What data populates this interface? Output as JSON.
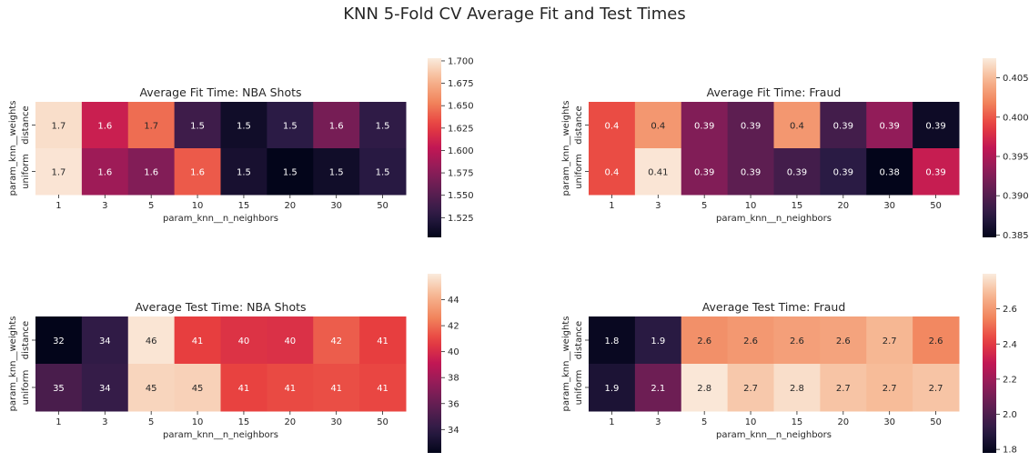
{
  "suptitle": "KNN 5-Fold CV Average Fit and Test Times",
  "chart_data": [
    {
      "type": "heatmap",
      "title": "Average Fit Time: NBA Shots",
      "xlabel": "param_knn__n_neighbors",
      "ylabel": "param_knn__weights",
      "categories": [
        "1",
        "3",
        "5",
        "10",
        "15",
        "20",
        "30",
        "50"
      ],
      "rows": [
        "distance",
        "uniform"
      ],
      "values": [
        [
          1.7,
          1.6,
          1.7,
          1.5,
          1.5,
          1.5,
          1.6,
          1.5
        ],
        [
          1.7,
          1.6,
          1.6,
          1.6,
          1.5,
          1.5,
          1.5,
          1.5
        ]
      ],
      "color_values": [
        [
          1.697,
          1.608,
          1.645,
          1.538,
          1.512,
          1.528,
          1.566,
          1.53
        ],
        [
          1.7,
          1.586,
          1.572,
          1.638,
          1.516,
          1.503,
          1.512,
          1.526
        ]
      ],
      "colorbar_range": [
        1.503,
        1.703
      ],
      "colorbar_ticks": [
        1.7,
        1.675,
        1.65,
        1.625,
        1.6,
        1.575,
        1.55,
        1.525
      ],
      "colorbar_labels": [
        "1.700",
        "1.675",
        "1.650",
        "1.625",
        "1.600",
        "1.575",
        "1.550",
        "1.525"
      ],
      "colormap": "rocket"
    },
    {
      "type": "heatmap",
      "title": "Average Fit Time: Fraud",
      "xlabel": "param_knn__n_neighbors",
      "ylabel": "param_knn__weights",
      "categories": [
        "1",
        "3",
        "5",
        "10",
        "15",
        "20",
        "30",
        "50"
      ],
      "rows": [
        "distance",
        "uniform"
      ],
      "values": [
        [
          0.4,
          0.4,
          0.39,
          0.39,
          0.4,
          0.39,
          0.39,
          0.39
        ],
        [
          0.4,
          0.41,
          0.39,
          0.39,
          0.39,
          0.39,
          0.38,
          0.39
        ]
      ],
      "color_values": [
        [
          0.3995,
          0.403,
          0.3925,
          0.3905,
          0.403,
          0.389,
          0.3935,
          0.3855
        ],
        [
          0.3995,
          0.4072,
          0.3925,
          0.3905,
          0.389,
          0.3875,
          0.3847,
          0.3965
        ]
      ],
      "colorbar_range": [
        0.3847,
        0.4075
      ],
      "colorbar_ticks": [
        0.405,
        0.4,
        0.395,
        0.39,
        0.385
      ],
      "colorbar_labels": [
        "0.405",
        "0.400",
        "0.395",
        "0.390",
        "0.385"
      ],
      "colormap": "rocket"
    },
    {
      "type": "heatmap",
      "title": "Average Test Time: NBA Shots",
      "xlabel": "param_knn__n_neighbors",
      "ylabel": "param_knn__weights",
      "categories": [
        "1",
        "3",
        "5",
        "10",
        "15",
        "20",
        "30",
        "50"
      ],
      "rows": [
        "distance",
        "uniform"
      ],
      "values": [
        [
          32,
          34,
          46,
          41,
          40,
          40,
          42,
          41
        ],
        [
          35,
          34,
          45,
          45,
          41,
          41,
          41,
          41
        ]
      ],
      "color_values": [
        [
          32.2,
          34.1,
          45.8,
          40.8,
          40.3,
          40.2,
          41.6,
          40.8
        ],
        [
          35.0,
          34.3,
          45.3,
          45.2,
          40.9,
          41.1,
          41.2,
          41.0
        ]
      ],
      "colorbar_range": [
        32.2,
        46.0
      ],
      "colorbar_ticks": [
        44,
        42,
        40,
        38,
        36,
        34
      ],
      "colorbar_labels": [
        "44",
        "42",
        "40",
        "38",
        "36",
        "34"
      ],
      "colormap": "rocket"
    },
    {
      "type": "heatmap",
      "title": "Average Test Time: Fraud",
      "xlabel": "param_knn__n_neighbors",
      "ylabel": "param_knn__weights",
      "categories": [
        "1",
        "3",
        "5",
        "10",
        "15",
        "20",
        "30",
        "50"
      ],
      "rows": [
        "distance",
        "uniform"
      ],
      "values": [
        [
          1.8,
          1.9,
          2.6,
          2.6,
          2.6,
          2.6,
          2.7,
          2.6
        ],
        [
          1.9,
          2.1,
          2.8,
          2.7,
          2.8,
          2.7,
          2.7,
          2.7
        ]
      ],
      "color_values": [
        [
          1.8,
          1.9,
          2.58,
          2.6,
          2.62,
          2.63,
          2.68,
          2.56
        ],
        [
          1.86,
          2.08,
          2.79,
          2.72,
          2.77,
          2.71,
          2.69,
          2.71
        ]
      ],
      "colorbar_range": [
        1.78,
        2.8
      ],
      "colorbar_ticks": [
        2.6,
        2.4,
        2.2,
        2.0,
        1.8
      ],
      "colorbar_labels": [
        "2.6",
        "2.4",
        "2.2",
        "2.0",
        "1.8"
      ],
      "colormap": "rocket"
    }
  ]
}
